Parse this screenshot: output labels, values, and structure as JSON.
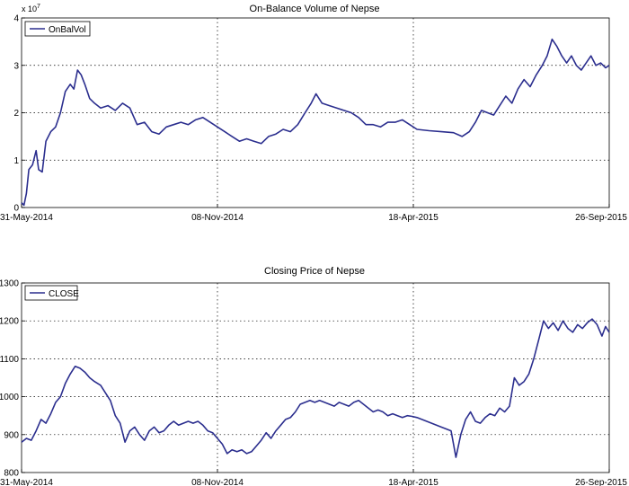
{
  "chart_data": [
    {
      "type": "line",
      "title": "On-Balance Volume of Nepse",
      "y_exponent_label": "x 10",
      "y_exponent_power": "7",
      "xlabel": "",
      "ylabel": "",
      "x_ticks": [
        "31-May-2014",
        "08-Nov-2014",
        "18-Apr-2015",
        "26-Sep-2015"
      ],
      "y_ticks": [
        "0",
        "1",
        "2",
        "3",
        "4"
      ],
      "ylim": [
        0,
        4
      ],
      "grid": true,
      "legend_position": "top-left",
      "series": [
        {
          "name": "OnBalVol",
          "color": "#2b2e8e",
          "points": [
            [
              "2014-05-31",
              0.1
            ],
            [
              "2014-06-02",
              0.05
            ],
            [
              "2014-06-04",
              0.3
            ],
            [
              "2014-06-06",
              0.8
            ],
            [
              "2014-06-09",
              0.9
            ],
            [
              "2014-06-12",
              1.2
            ],
            [
              "2014-06-14",
              0.8
            ],
            [
              "2014-06-17",
              0.75
            ],
            [
              "2014-06-20",
              1.4
            ],
            [
              "2014-06-24",
              1.6
            ],
            [
              "2014-06-28",
              1.7
            ],
            [
              "2014-07-02",
              2.0
            ],
            [
              "2014-07-06",
              2.45
            ],
            [
              "2014-07-10",
              2.6
            ],
            [
              "2014-07-13",
              2.5
            ],
            [
              "2014-07-16",
              2.9
            ],
            [
              "2014-07-19",
              2.8
            ],
            [
              "2014-07-22",
              2.6
            ],
            [
              "2014-07-26",
              2.3
            ],
            [
              "2014-07-30",
              2.2
            ],
            [
              "2014-08-04",
              2.1
            ],
            [
              "2014-08-10",
              2.15
            ],
            [
              "2014-08-16",
              2.05
            ],
            [
              "2014-08-22",
              2.2
            ],
            [
              "2014-08-28",
              2.1
            ],
            [
              "2014-09-03",
              1.75
            ],
            [
              "2014-09-09",
              1.8
            ],
            [
              "2014-09-15",
              1.6
            ],
            [
              "2014-09-21",
              1.55
            ],
            [
              "2014-09-27",
              1.7
            ],
            [
              "2014-10-03",
              1.75
            ],
            [
              "2014-10-09",
              1.8
            ],
            [
              "2014-10-15",
              1.75
            ],
            [
              "2014-10-21",
              1.85
            ],
            [
              "2014-10-27",
              1.9
            ],
            [
              "2014-11-02",
              1.8
            ],
            [
              "2014-11-08",
              1.7
            ],
            [
              "2014-11-14",
              1.6
            ],
            [
              "2014-11-20",
              1.5
            ],
            [
              "2014-11-26",
              1.4
            ],
            [
              "2014-12-02",
              1.45
            ],
            [
              "2014-12-08",
              1.4
            ],
            [
              "2014-12-14",
              1.35
            ],
            [
              "2014-12-20",
              1.5
            ],
            [
              "2014-12-26",
              1.55
            ],
            [
              "2015-01-01",
              1.65
            ],
            [
              "2015-01-07",
              1.6
            ],
            [
              "2015-01-13",
              1.75
            ],
            [
              "2015-01-19",
              2.0
            ],
            [
              "2015-01-24",
              2.2
            ],
            [
              "2015-01-28",
              2.4
            ],
            [
              "2015-02-02",
              2.2
            ],
            [
              "2015-02-08",
              2.15
            ],
            [
              "2015-02-14",
              2.1
            ],
            [
              "2015-02-20",
              2.05
            ],
            [
              "2015-02-26",
              2.0
            ],
            [
              "2015-03-04",
              1.9
            ],
            [
              "2015-03-10",
              1.75
            ],
            [
              "2015-03-16",
              1.75
            ],
            [
              "2015-03-22",
              1.7
            ],
            [
              "2015-03-28",
              1.8
            ],
            [
              "2015-04-03",
              1.8
            ],
            [
              "2015-04-09",
              1.85
            ],
            [
              "2015-04-15",
              1.75
            ],
            [
              "2015-04-21",
              1.65
            ],
            [
              "2015-05-01",
              1.62
            ],
            [
              "2015-05-11",
              1.6
            ],
            [
              "2015-05-21",
              1.58
            ],
            [
              "2015-05-28",
              1.5
            ],
            [
              "2015-06-03",
              1.6
            ],
            [
              "2015-06-08",
              1.8
            ],
            [
              "2015-06-13",
              2.05
            ],
            [
              "2015-06-18",
              2.0
            ],
            [
              "2015-06-23",
              1.95
            ],
            [
              "2015-06-28",
              2.15
            ],
            [
              "2015-07-03",
              2.35
            ],
            [
              "2015-07-08",
              2.2
            ],
            [
              "2015-07-13",
              2.5
            ],
            [
              "2015-07-18",
              2.7
            ],
            [
              "2015-07-23",
              2.55
            ],
            [
              "2015-07-28",
              2.8
            ],
            [
              "2015-08-02",
              3.0
            ],
            [
              "2015-08-06",
              3.2
            ],
            [
              "2015-08-10",
              3.55
            ],
            [
              "2015-08-14",
              3.4
            ],
            [
              "2015-08-18",
              3.2
            ],
            [
              "2015-08-22",
              3.05
            ],
            [
              "2015-08-26",
              3.2
            ],
            [
              "2015-08-30",
              3.0
            ],
            [
              "2015-09-03",
              2.9
            ],
            [
              "2015-09-07",
              3.05
            ],
            [
              "2015-09-11",
              3.2
            ],
            [
              "2015-09-15",
              3.0
            ],
            [
              "2015-09-19",
              3.05
            ],
            [
              "2015-09-23",
              2.95
            ],
            [
              "2015-09-26",
              3.0
            ]
          ]
        }
      ]
    },
    {
      "type": "line",
      "title": "Closing Price of Nepse",
      "xlabel": "",
      "ylabel": "",
      "x_ticks": [
        "31-May-2014",
        "08-Nov-2014",
        "18-Apr-2015",
        "26-Sep-2015"
      ],
      "y_ticks": [
        "800",
        "900",
        "1000",
        "1100",
        "1200",
        "1300"
      ],
      "ylim": [
        800,
        1300
      ],
      "grid": true,
      "legend_position": "top-left",
      "series": [
        {
          "name": "CLOSE",
          "color": "#2b2e8e",
          "points": [
            [
              "2014-05-31",
              880
            ],
            [
              "2014-06-04",
              890
            ],
            [
              "2014-06-08",
              885
            ],
            [
              "2014-06-12",
              910
            ],
            [
              "2014-06-16",
              940
            ],
            [
              "2014-06-20",
              930
            ],
            [
              "2014-06-24",
              955
            ],
            [
              "2014-06-28",
              985
            ],
            [
              "2014-07-02",
              1000
            ],
            [
              "2014-07-06",
              1035
            ],
            [
              "2014-07-10",
              1060
            ],
            [
              "2014-07-14",
              1080
            ],
            [
              "2014-07-18",
              1075
            ],
            [
              "2014-07-22",
              1065
            ],
            [
              "2014-07-26",
              1050
            ],
            [
              "2014-07-30",
              1040
            ],
            [
              "2014-08-04",
              1030
            ],
            [
              "2014-08-08",
              1010
            ],
            [
              "2014-08-12",
              990
            ],
            [
              "2014-08-16",
              950
            ],
            [
              "2014-08-20",
              930
            ],
            [
              "2014-08-24",
              880
            ],
            [
              "2014-08-28",
              910
            ],
            [
              "2014-09-01",
              920
            ],
            [
              "2014-09-05",
              900
            ],
            [
              "2014-09-09",
              885
            ],
            [
              "2014-09-13",
              910
            ],
            [
              "2014-09-17",
              920
            ],
            [
              "2014-09-21",
              905
            ],
            [
              "2014-09-25",
              910
            ],
            [
              "2014-09-29",
              925
            ],
            [
              "2014-10-03",
              935
            ],
            [
              "2014-10-07",
              925
            ],
            [
              "2014-10-11",
              930
            ],
            [
              "2014-10-15",
              935
            ],
            [
              "2014-10-19",
              930
            ],
            [
              "2014-10-23",
              935
            ],
            [
              "2014-10-27",
              925
            ],
            [
              "2014-10-31",
              910
            ],
            [
              "2014-11-04",
              905
            ],
            [
              "2014-11-08",
              890
            ],
            [
              "2014-11-12",
              875
            ],
            [
              "2014-11-16",
              850
            ],
            [
              "2014-11-20",
              860
            ],
            [
              "2014-11-24",
              855
            ],
            [
              "2014-11-28",
              860
            ],
            [
              "2014-12-02",
              850
            ],
            [
              "2014-12-06",
              855
            ],
            [
              "2014-12-10",
              870
            ],
            [
              "2014-12-14",
              885
            ],
            [
              "2014-12-18",
              905
            ],
            [
              "2014-12-22",
              890
            ],
            [
              "2014-12-26",
              910
            ],
            [
              "2014-12-30",
              925
            ],
            [
              "2015-01-03",
              940
            ],
            [
              "2015-01-07",
              945
            ],
            [
              "2015-01-11",
              960
            ],
            [
              "2015-01-15",
              980
            ],
            [
              "2015-01-19",
              985
            ],
            [
              "2015-01-23",
              990
            ],
            [
              "2015-01-27",
              985
            ],
            [
              "2015-01-31",
              990
            ],
            [
              "2015-02-04",
              985
            ],
            [
              "2015-02-08",
              980
            ],
            [
              "2015-02-12",
              975
            ],
            [
              "2015-02-16",
              985
            ],
            [
              "2015-02-20",
              980
            ],
            [
              "2015-02-24",
              975
            ],
            [
              "2015-02-28",
              985
            ],
            [
              "2015-03-04",
              990
            ],
            [
              "2015-03-08",
              980
            ],
            [
              "2015-03-12",
              970
            ],
            [
              "2015-03-16",
              960
            ],
            [
              "2015-03-20",
              965
            ],
            [
              "2015-03-24",
              960
            ],
            [
              "2015-03-28",
              950
            ],
            [
              "2015-04-01",
              955
            ],
            [
              "2015-04-05",
              950
            ],
            [
              "2015-04-09",
              945
            ],
            [
              "2015-04-13",
              950
            ],
            [
              "2015-04-17",
              948
            ],
            [
              "2015-04-21",
              945
            ],
            [
              "2015-04-25",
              940
            ],
            [
              "2015-04-29",
              935
            ],
            [
              "2015-05-03",
              930
            ],
            [
              "2015-05-07",
              925
            ],
            [
              "2015-05-11",
              920
            ],
            [
              "2015-05-15",
              915
            ],
            [
              "2015-05-19",
              910
            ],
            [
              "2015-05-23",
              840
            ],
            [
              "2015-05-27",
              900
            ],
            [
              "2015-05-31",
              940
            ],
            [
              "2015-06-04",
              960
            ],
            [
              "2015-06-08",
              935
            ],
            [
              "2015-06-12",
              930
            ],
            [
              "2015-06-16",
              945
            ],
            [
              "2015-06-20",
              955
            ],
            [
              "2015-06-24",
              950
            ],
            [
              "2015-06-28",
              970
            ],
            [
              "2015-07-02",
              960
            ],
            [
              "2015-07-06",
              975
            ],
            [
              "2015-07-10",
              1050
            ],
            [
              "2015-07-14",
              1030
            ],
            [
              "2015-07-18",
              1040
            ],
            [
              "2015-07-22",
              1060
            ],
            [
              "2015-07-26",
              1100
            ],
            [
              "2015-07-30",
              1150
            ],
            [
              "2015-08-03",
              1200
            ],
            [
              "2015-08-07",
              1180
            ],
            [
              "2015-08-11",
              1195
            ],
            [
              "2015-08-15",
              1175
            ],
            [
              "2015-08-19",
              1200
            ],
            [
              "2015-08-23",
              1180
            ],
            [
              "2015-08-27",
              1170
            ],
            [
              "2015-08-31",
              1190
            ],
            [
              "2015-09-04",
              1180
            ],
            [
              "2015-09-08",
              1195
            ],
            [
              "2015-09-12",
              1205
            ],
            [
              "2015-09-16",
              1190
            ],
            [
              "2015-09-20",
              1160
            ],
            [
              "2015-09-23",
              1185
            ],
            [
              "2015-09-26",
              1170
            ]
          ]
        }
      ]
    }
  ]
}
